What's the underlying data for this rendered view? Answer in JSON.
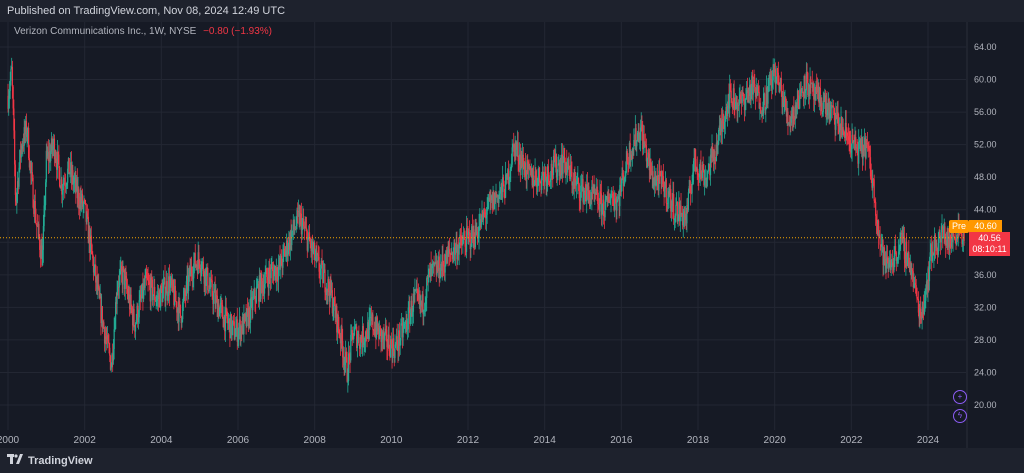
{
  "header": {
    "published": "Published on TradingView.com, Nov 08, 2024 12:49 UTC"
  },
  "legend": {
    "symbol": "Verizon Communications Inc., 1W, NYSE",
    "change": "−0.80 (−1.93%)"
  },
  "footer": {
    "brand": "TradingView"
  },
  "price_tags": {
    "pre_label": "Pre",
    "pre_price": "40.60",
    "current_price": "40.56",
    "countdown": "08:10:11"
  },
  "icons": [
    "plus-circle-icon",
    "lightning-icon"
  ],
  "colors": {
    "up": "#22ab94",
    "down": "#f23645",
    "background": "#161a25",
    "axis_text": "#b2b5be",
    "pre_market": "#ff9800",
    "price_line": "#f7a600"
  },
  "chart_data": {
    "type": "candlestick",
    "title": "",
    "xlabel": "",
    "ylabel": "",
    "y_ticks": [
      20,
      24,
      28,
      32,
      36,
      40,
      44,
      48,
      52,
      56,
      60,
      64
    ],
    "ylim": [
      19,
      66
    ],
    "x_ticks": [
      "2000",
      "2002",
      "2004",
      "2006",
      "2008",
      "2010",
      "2012",
      "2014",
      "2016",
      "2018",
      "2020",
      "2022",
      "2024"
    ],
    "xlim": [
      2000.0,
      2025.4
    ],
    "grid": true,
    "current_price_line": 40.56,
    "price_path": {
      "x": [
        2000.0,
        2000.1,
        2000.2,
        2000.35,
        2000.5,
        2000.6,
        2000.75,
        2000.9,
        2001.0,
        2001.2,
        2001.4,
        2001.6,
        2001.8,
        2002.0,
        2002.2,
        2002.4,
        2002.6,
        2002.7,
        2002.85,
        2003.0,
        2003.3,
        2003.6,
        2003.9,
        2004.2,
        2004.5,
        2004.8,
        2005.0,
        2005.3,
        2005.6,
        2005.9,
        2006.2,
        2006.5,
        2006.8,
        2007.1,
        2007.4,
        2007.6,
        2007.85,
        2008.1,
        2008.4,
        2008.7,
        2008.85,
        2009.0,
        2009.2,
        2009.5,
        2009.8,
        2010.1,
        2010.4,
        2010.6,
        2010.8,
        2011.0,
        2011.3,
        2011.6,
        2011.9,
        2012.2,
        2012.5,
        2012.8,
        2013.0,
        2013.2,
        2013.4,
        2013.6,
        2013.9,
        2014.2,
        2014.5,
        2014.8,
        2015.1,
        2015.4,
        2015.6,
        2015.7,
        2015.9,
        2016.2,
        2016.5,
        2016.8,
        2017.1,
        2017.4,
        2017.7,
        2017.9,
        2018.2,
        2018.5,
        2018.8,
        2019.1,
        2019.4,
        2019.7,
        2020.0,
        2020.2,
        2020.35,
        2020.5,
        2020.8,
        2021.0,
        2021.3,
        2021.6,
        2021.9,
        2022.2,
        2022.4,
        2022.6,
        2022.75,
        2022.9,
        2023.1,
        2023.3,
        2023.5,
        2023.8,
        2023.9,
        2024.1,
        2024.4,
        2024.6,
        2024.8,
        2024.95
      ],
      "y": [
        58.0,
        61.0,
        45.0,
        52.0,
        54.0,
        48.0,
        42.0,
        38.0,
        50.0,
        52.0,
        47.0,
        49.0,
        46.0,
        44.0,
        38.0,
        32.0,
        27.0,
        25.0,
        35.0,
        36.0,
        30.0,
        35.0,
        33.0,
        35.0,
        31.0,
        37.0,
        38.0,
        34.0,
        31.0,
        29.0,
        30.0,
        34.0,
        36.0,
        37.0,
        41.0,
        43.0,
        40.0,
        37.0,
        34.0,
        28.0,
        24.0,
        29.0,
        28.0,
        30.0,
        28.0,
        27.0,
        30.0,
        33.0,
        32.0,
        36.0,
        37.0,
        39.0,
        40.0,
        41.0,
        44.0,
        46.0,
        47.0,
        52.0,
        50.0,
        48.0,
        48.0,
        49.0,
        50.0,
        47.0,
        46.0,
        45.0,
        44.0,
        46.0,
        45.0,
        51.0,
        54.0,
        48.0,
        47.0,
        44.0,
        43.0,
        50.0,
        48.0,
        52.0,
        58.0,
        57.0,
        59.0,
        57.0,
        61.0,
        58.0,
        55.0,
        56.0,
        60.0,
        58.0,
        57.0,
        55.0,
        53.0,
        51.0,
        52.0,
        46.0,
        40.0,
        37.0,
        38.0,
        40.0,
        38.0,
        31.0,
        33.0,
        39.0,
        41.0,
        40.0,
        42.0,
        40.6
      ]
    }
  }
}
